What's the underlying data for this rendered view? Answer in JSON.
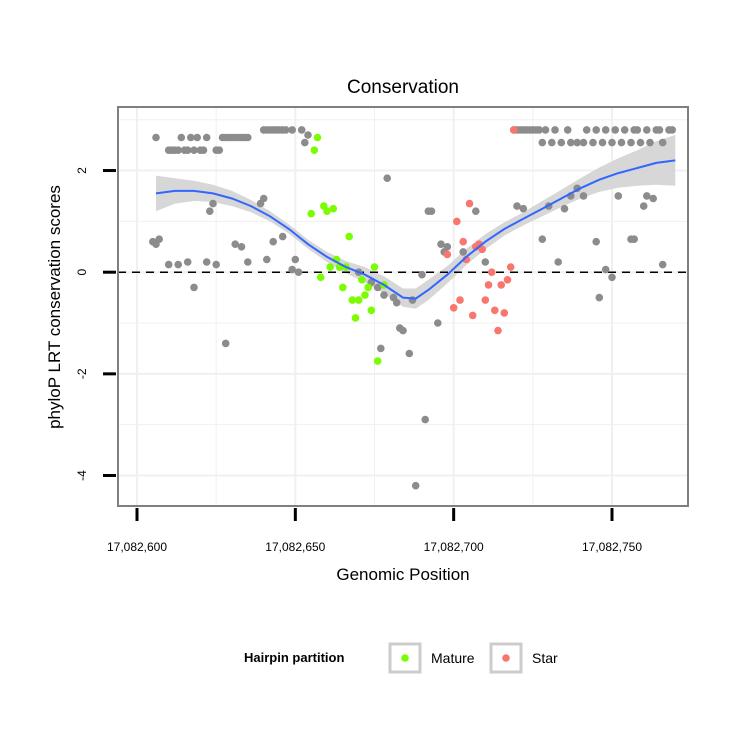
{
  "chart_data": {
    "type": "scatter",
    "title": "Conservation",
    "xlabel": "Genomic Position",
    "ylabel": "phyloP LRT conservation scores",
    "xlim": [
      17082594,
      17082774
    ],
    "ylim": [
      -4.6,
      3.25
    ],
    "x_ticks": [
      17082600,
      17082650,
      17082700,
      17082750
    ],
    "x_tick_labels": [
      "17,082,600",
      "17,082,650",
      "17,082,700",
      "17,082,750"
    ],
    "y_ticks": [
      -4,
      -2,
      0,
      2
    ],
    "y_tick_labels": [
      "-4",
      "-2",
      "0",
      "2"
    ],
    "reference_line": {
      "y": 0,
      "style": "dashed"
    },
    "legend": {
      "title": "Hairpin partition",
      "entries": [
        {
          "label": "Mature",
          "color": "#7cfc00"
        },
        {
          "label": "Star",
          "color": "#f8766d"
        }
      ]
    },
    "colors": {
      "other": "#8c8c8c",
      "Mature": "#7cfc00",
      "Star": "#f8766d",
      "smooth": "#3366ff",
      "band": "#d3d3d3"
    },
    "series": [
      {
        "name": "Other",
        "points": [
          [
            17082606,
            2.65
          ],
          [
            17082610,
            2.4
          ],
          [
            17082611,
            2.4
          ],
          [
            17082612,
            2.4
          ],
          [
            17082613,
            2.4
          ],
          [
            17082614,
            2.65
          ],
          [
            17082615,
            2.4
          ],
          [
            17082616,
            2.4
          ],
          [
            17082617,
            2.65
          ],
          [
            17082618,
            2.4
          ],
          [
            17082619,
            2.65
          ],
          [
            17082620,
            2.4
          ],
          [
            17082621,
            2.4
          ],
          [
            17082622,
            2.65
          ],
          [
            17082625,
            2.4
          ],
          [
            17082626,
            2.4
          ],
          [
            17082627,
            2.65
          ],
          [
            17082628,
            2.65
          ],
          [
            17082629,
            2.65
          ],
          [
            17082630,
            2.65
          ],
          [
            17082631,
            2.65
          ],
          [
            17082632,
            2.65
          ],
          [
            17082633,
            2.65
          ],
          [
            17082634,
            2.65
          ],
          [
            17082635,
            2.65
          ],
          [
            17082640,
            2.8
          ],
          [
            17082641,
            2.8
          ],
          [
            17082642,
            2.8
          ],
          [
            17082643,
            2.8
          ],
          [
            17082644,
            2.8
          ],
          [
            17082645,
            2.8
          ],
          [
            17082646,
            2.8
          ],
          [
            17082647,
            2.8
          ],
          [
            17082649,
            2.8
          ],
          [
            17082652,
            2.8
          ],
          [
            17082653,
            2.55
          ],
          [
            17082654,
            2.7
          ],
          [
            17082605,
            0.6
          ],
          [
            17082606,
            0.55
          ],
          [
            17082607,
            0.65
          ],
          [
            17082610,
            0.15
          ],
          [
            17082613,
            0.15
          ],
          [
            17082616,
            0.2
          ],
          [
            17082618,
            -0.3
          ],
          [
            17082622,
            0.2
          ],
          [
            17082623,
            1.2
          ],
          [
            17082624,
            1.35
          ],
          [
            17082625,
            0.15
          ],
          [
            17082628,
            -1.4
          ],
          [
            17082631,
            0.55
          ],
          [
            17082633,
            0.5
          ],
          [
            17082635,
            0.2
          ],
          [
            17082639,
            1.35
          ],
          [
            17082640,
            1.45
          ],
          [
            17082641,
            0.25
          ],
          [
            17082643,
            0.6
          ],
          [
            17082646,
            0.7
          ],
          [
            17082649,
            0.05
          ],
          [
            17082650,
            0.25
          ],
          [
            17082651,
            0
          ],
          [
            17082664,
            0.1
          ],
          [
            17082670,
            0
          ],
          [
            17082674,
            -0.2
          ],
          [
            17082676,
            -0.3
          ],
          [
            17082677,
            -1.5
          ],
          [
            17082678,
            -0.45
          ],
          [
            17082679,
            1.85
          ],
          [
            17082681,
            -0.5
          ],
          [
            17082682,
            -0.6
          ],
          [
            17082683,
            -1.1
          ],
          [
            17082684,
            -1.15
          ],
          [
            17082686,
            -1.6
          ],
          [
            17082687,
            -0.55
          ],
          [
            17082688,
            -4.2
          ],
          [
            17082690,
            -0.05
          ],
          [
            17082691,
            -2.9
          ],
          [
            17082692,
            1.2
          ],
          [
            17082693,
            1.2
          ],
          [
            17082695,
            -1
          ],
          [
            17082696,
            0.55
          ],
          [
            17082697,
            0.4
          ],
          [
            17082698,
            0.5
          ],
          [
            17082703,
            0.4
          ],
          [
            17082707,
            1.2
          ],
          [
            17082710,
            0.2
          ],
          [
            17082720,
            1.3
          ],
          [
            17082722,
            1.25
          ],
          [
            17082728,
            0.65
          ],
          [
            17082730,
            1.3
          ],
          [
            17082733,
            0.2
          ],
          [
            17082735,
            1.25
          ],
          [
            17082737,
            1.5
          ],
          [
            17082739,
            1.65
          ],
          [
            17082741,
            1.5
          ],
          [
            17082745,
            0.6
          ],
          [
            17082746,
            -0.5
          ],
          [
            17082748,
            0.05
          ],
          [
            17082750,
            -0.1
          ],
          [
            17082752,
            1.5
          ],
          [
            17082756,
            0.65
          ],
          [
            17082757,
            0.65
          ],
          [
            17082760,
            1.3
          ],
          [
            17082761,
            1.5
          ],
          [
            17082763,
            1.45
          ],
          [
            17082766,
            0.15
          ],
          [
            17082719,
            2.8
          ],
          [
            17082720,
            2.8
          ],
          [
            17082721,
            2.8
          ],
          [
            17082722,
            2.8
          ],
          [
            17082723,
            2.8
          ],
          [
            17082724,
            2.8
          ],
          [
            17082725,
            2.8
          ],
          [
            17082726,
            2.8
          ],
          [
            17082727,
            2.8
          ],
          [
            17082728,
            2.55
          ],
          [
            17082729,
            2.8
          ],
          [
            17082731,
            2.55
          ],
          [
            17082732,
            2.8
          ],
          [
            17082734,
            2.55
          ],
          [
            17082736,
            2.8
          ],
          [
            17082737,
            2.55
          ],
          [
            17082739,
            2.55
          ],
          [
            17082741,
            2.55
          ],
          [
            17082742,
            2.8
          ],
          [
            17082744,
            2.55
          ],
          [
            17082745,
            2.8
          ],
          [
            17082747,
            2.55
          ],
          [
            17082748,
            2.8
          ],
          [
            17082750,
            2.55
          ],
          [
            17082751,
            2.8
          ],
          [
            17082753,
            2.55
          ],
          [
            17082754,
            2.8
          ],
          [
            17082756,
            2.55
          ],
          [
            17082757,
            2.8
          ],
          [
            17082758,
            2.8
          ],
          [
            17082759,
            2.55
          ],
          [
            17082761,
            2.8
          ],
          [
            17082762,
            2.55
          ],
          [
            17082764,
            2.8
          ],
          [
            17082765,
            2.8
          ],
          [
            17082766,
            2.55
          ],
          [
            17082768,
            2.8
          ],
          [
            17082769,
            2.8
          ]
        ]
      },
      {
        "name": "Mature",
        "points": [
          [
            17082655,
            1.15
          ],
          [
            17082656,
            2.4
          ],
          [
            17082657,
            2.65
          ],
          [
            17082658,
            -0.1
          ],
          [
            17082659,
            1.3
          ],
          [
            17082660,
            1.2
          ],
          [
            17082661,
            0.1
          ],
          [
            17082662,
            1.25
          ],
          [
            17082663,
            0.25
          ],
          [
            17082664,
            0.1
          ],
          [
            17082665,
            -0.3
          ],
          [
            17082666,
            0.1
          ],
          [
            17082667,
            0.7
          ],
          [
            17082668,
            -0.55
          ],
          [
            17082669,
            -0.9
          ],
          [
            17082670,
            -0.55
          ],
          [
            17082671,
            -0.15
          ],
          [
            17082672,
            -0.45
          ],
          [
            17082673,
            -0.3
          ],
          [
            17082674,
            -0.75
          ],
          [
            17082675,
            0.1
          ],
          [
            17082676,
            -1.75
          ],
          [
            17082678,
            -0.25
          ]
        ]
      },
      {
        "name": "Star",
        "points": [
          [
            17082698,
            0.35
          ],
          [
            17082700,
            -0.7
          ],
          [
            17082701,
            1
          ],
          [
            17082702,
            -0.55
          ],
          [
            17082703,
            0.6
          ],
          [
            17082704,
            0.25
          ],
          [
            17082705,
            1.35
          ],
          [
            17082706,
            -0.85
          ],
          [
            17082707,
            0.5
          ],
          [
            17082708,
            0.55
          ],
          [
            17082709,
            0.45
          ],
          [
            17082710,
            -0.55
          ],
          [
            17082711,
            -0.25
          ],
          [
            17082712,
            0
          ],
          [
            17082713,
            -0.75
          ],
          [
            17082714,
            -1.15
          ],
          [
            17082715,
            -0.25
          ],
          [
            17082716,
            -0.8
          ],
          [
            17082717,
            -0.15
          ],
          [
            17082718,
            0.1
          ],
          [
            17082719,
            2.8
          ]
        ]
      }
    ],
    "smooth": {
      "x": [
        17082606,
        17082612,
        17082618,
        17082624,
        17082630,
        17082636,
        17082642,
        17082648,
        17082654,
        17082660,
        17082666,
        17082672,
        17082678,
        17082684,
        17082688,
        17082692,
        17082698,
        17082704,
        17082710,
        17082716,
        17082722,
        17082728,
        17082734,
        17082740,
        17082746,
        17082752,
        17082758,
        17082764,
        17082770
      ],
      "y": [
        1.55,
        1.6,
        1.6,
        1.55,
        1.45,
        1.3,
        1.1,
        0.85,
        0.55,
        0.3,
        0.1,
        -0.05,
        -0.25,
        -0.5,
        -0.52,
        -0.35,
        -0.05,
        0.3,
        0.6,
        0.85,
        1.05,
        1.25,
        1.45,
        1.65,
        1.82,
        1.95,
        2.05,
        2.15,
        2.2
      ],
      "lower": [
        1.2,
        1.35,
        1.4,
        1.38,
        1.3,
        1.18,
        1.0,
        0.76,
        0.46,
        0.2,
        -0.02,
        -0.2,
        -0.42,
        -0.68,
        -0.72,
        -0.55,
        -0.22,
        0.14,
        0.45,
        0.72,
        0.92,
        1.1,
        1.28,
        1.45,
        1.58,
        1.66,
        1.7,
        1.72,
        1.7
      ],
      "upper": [
        1.9,
        1.85,
        1.8,
        1.72,
        1.6,
        1.42,
        1.2,
        0.94,
        0.64,
        0.4,
        0.22,
        0.1,
        -0.08,
        -0.32,
        -0.32,
        -0.15,
        0.12,
        0.46,
        0.75,
        0.98,
        1.18,
        1.4,
        1.62,
        1.85,
        2.06,
        2.24,
        2.4,
        2.58,
        2.7
      ]
    }
  }
}
